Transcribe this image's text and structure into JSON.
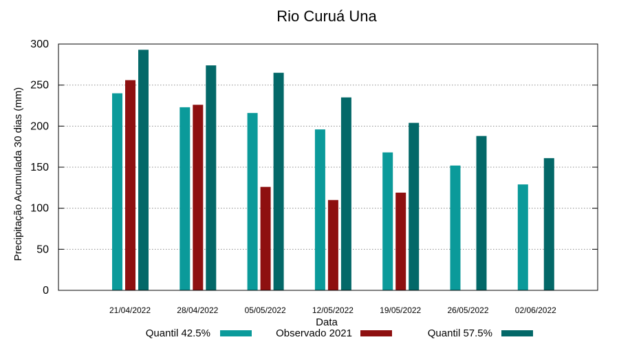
{
  "chart_data": {
    "type": "bar",
    "title": "Rio Curuá Una",
    "xlabel": "Data",
    "ylabel": "Precipitação Acumulada 30 dias (mm)",
    "ylim": [
      0,
      300
    ],
    "yticks": [
      0,
      50,
      100,
      150,
      200,
      250,
      300
    ],
    "grid": true,
    "legend_position": "bottom",
    "categories": [
      "21/04/2022",
      "28/04/2022",
      "05/05/2022",
      "12/05/2022",
      "19/05/2022",
      "26/05/2022",
      "02/06/2022"
    ],
    "series": [
      {
        "name": "Quantil 42.5%",
        "color": "#0b9a9a",
        "values": [
          240,
          223,
          216,
          196,
          168,
          152,
          129
        ]
      },
      {
        "name": "Observado 2021",
        "color": "#8e1010",
        "values": [
          256,
          226,
          126,
          110,
          119,
          null,
          null
        ]
      },
      {
        "name": "Quantil 57.5%",
        "color": "#036868",
        "values": [
          293,
          274,
          265,
          235,
          204,
          188,
          161
        ]
      }
    ]
  }
}
